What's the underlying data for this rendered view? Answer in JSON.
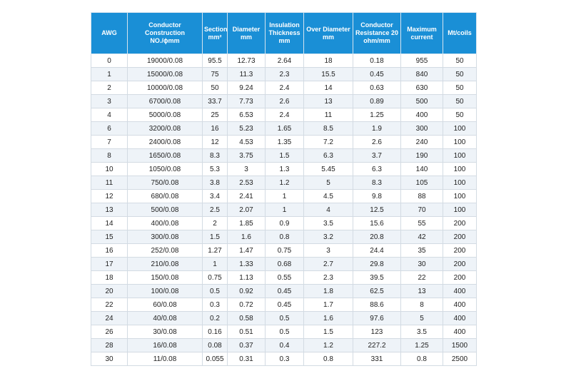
{
  "table": {
    "header": [
      [
        "AWG"
      ],
      [
        "Conductor",
        "Construction",
        "NO./ϕmm"
      ],
      [
        "Section",
        "mm²"
      ],
      [
        "Diameter",
        "mm"
      ],
      [
        "Insulation",
        "Thickness",
        "mm"
      ],
      [
        "Over Diameter",
        "mm"
      ],
      [
        "Conductor",
        "Resistance 20",
        "ohm/mm"
      ],
      [
        "Maximum",
        "current"
      ],
      [
        "Mt/coils"
      ]
    ],
    "rows": [
      [
        0,
        "19000/0.08",
        95.5,
        12.73,
        2.64,
        18,
        0.18,
        955,
        50
      ],
      [
        1,
        "15000/0.08",
        75,
        11.3,
        2.3,
        15.5,
        0.45,
        840,
        50
      ],
      [
        2,
        "10000/0.08",
        50,
        9.24,
        2.4,
        14,
        0.63,
        630,
        50
      ],
      [
        3,
        "6700/0.08",
        33.7,
        7.73,
        2.6,
        13,
        0.89,
        500,
        50
      ],
      [
        4,
        "5000/0.08",
        25,
        6.53,
        2.4,
        11,
        1.25,
        400,
        50
      ],
      [
        6,
        "3200/0.08",
        16,
        5.23,
        1.65,
        8.5,
        1.9,
        300,
        100
      ],
      [
        7,
        "2400/0.08",
        12,
        4.53,
        1.35,
        7.2,
        2.6,
        240,
        100
      ],
      [
        8,
        "1650/0.08",
        8.3,
        3.75,
        1.5,
        6.3,
        3.7,
        190,
        100
      ],
      [
        10,
        "1050/0.08",
        5.3,
        3,
        1.3,
        5.45,
        6.3,
        140,
        100
      ],
      [
        11,
        "750/0.08",
        3.8,
        2.53,
        1.2,
        5,
        8.3,
        105,
        100
      ],
      [
        12,
        "680/0.08",
        3.4,
        2.41,
        1,
        4.5,
        9.8,
        88,
        100
      ],
      [
        13,
        "500/0.08",
        2.5,
        2.07,
        1,
        4,
        12.5,
        70,
        100
      ],
      [
        14,
        "400/0.08",
        2,
        1.85,
        0.9,
        3.5,
        15.6,
        55,
        200
      ],
      [
        15,
        "300/0.08",
        1.5,
        1.6,
        0.8,
        3.2,
        20.8,
        42,
        200
      ],
      [
        16,
        "252/0.08",
        1.27,
        1.47,
        0.75,
        3,
        24.4,
        35,
        200
      ],
      [
        17,
        "210/0.08",
        1,
        1.33,
        0.68,
        2.7,
        29.8,
        30,
        200
      ],
      [
        18,
        "150/0.08",
        0.75,
        1.13,
        0.55,
        2.3,
        39.5,
        22,
        200
      ],
      [
        20,
        "100/0.08",
        0.5,
        0.92,
        0.45,
        1.8,
        62.5,
        13,
        400
      ],
      [
        22,
        "60/0.08",
        0.3,
        0.72,
        0.45,
        1.7,
        88.6,
        8,
        400
      ],
      [
        24,
        "40/0.08",
        0.2,
        0.58,
        0.5,
        1.6,
        97.6,
        5,
        400
      ],
      [
        26,
        "30/0.08",
        0.16,
        0.51,
        0.5,
        1.5,
        123,
        3.5,
        400
      ],
      [
        28,
        "16/0.08",
        0.08,
        0.37,
        0.4,
        1.2,
        227.2,
        1.25,
        1500
      ],
      [
        30,
        "11/0.08",
        0.055,
        0.31,
        0.3,
        0.8,
        331,
        0.8,
        2500
      ]
    ]
  }
}
